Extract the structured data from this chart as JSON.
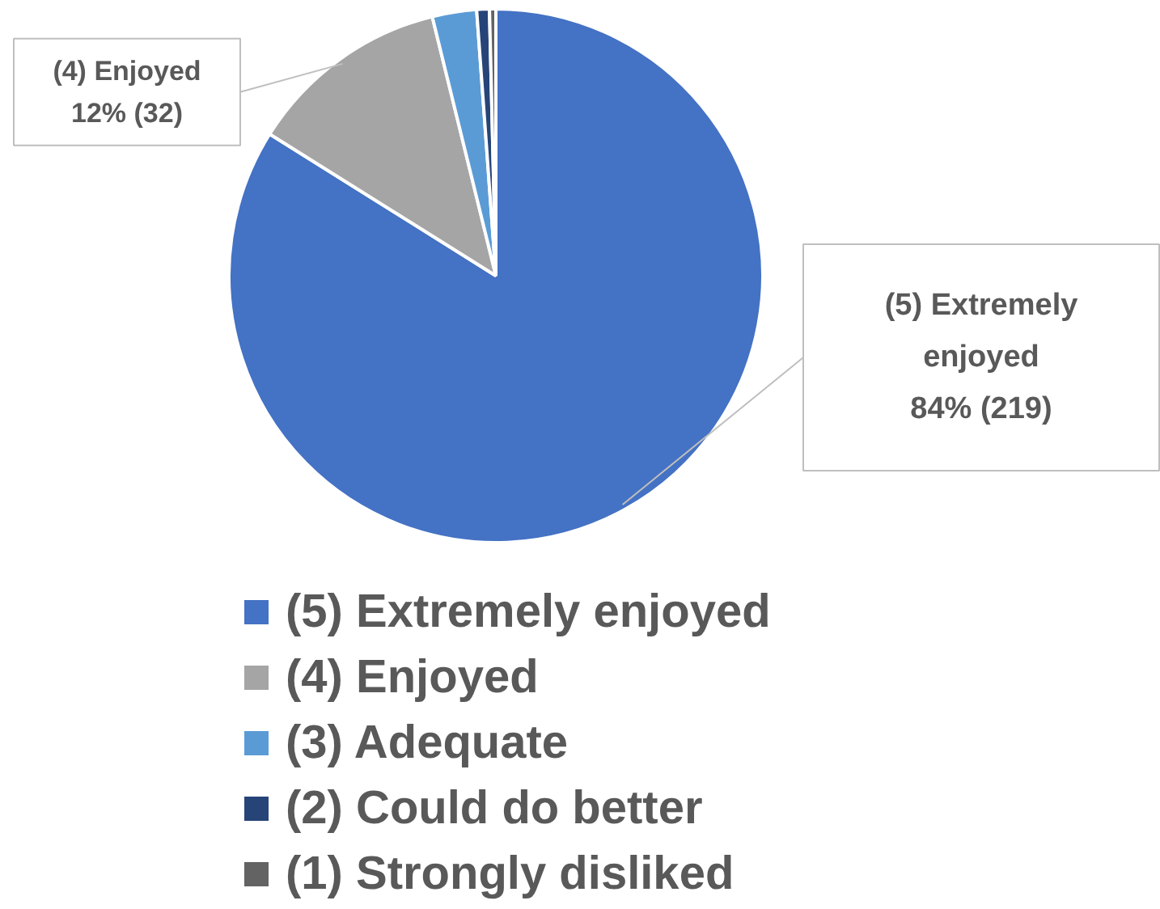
{
  "chart_data": {
    "type": "pie",
    "categories": [
      "(5) Extremely enjoyed",
      "(4) Enjoyed",
      "(3) Adequate",
      "(2) Could do better",
      "(1) Strongly disliked"
    ],
    "values": [
      219,
      32,
      7,
      2,
      1
    ],
    "colors": [
      "#4472c4",
      "#a5a5a5",
      "#5b9bd5",
      "#264478",
      "#636363"
    ],
    "value_labels": [
      "84% (219)",
      "12% (32)",
      null,
      null,
      null
    ],
    "legend": "bottom"
  }
}
